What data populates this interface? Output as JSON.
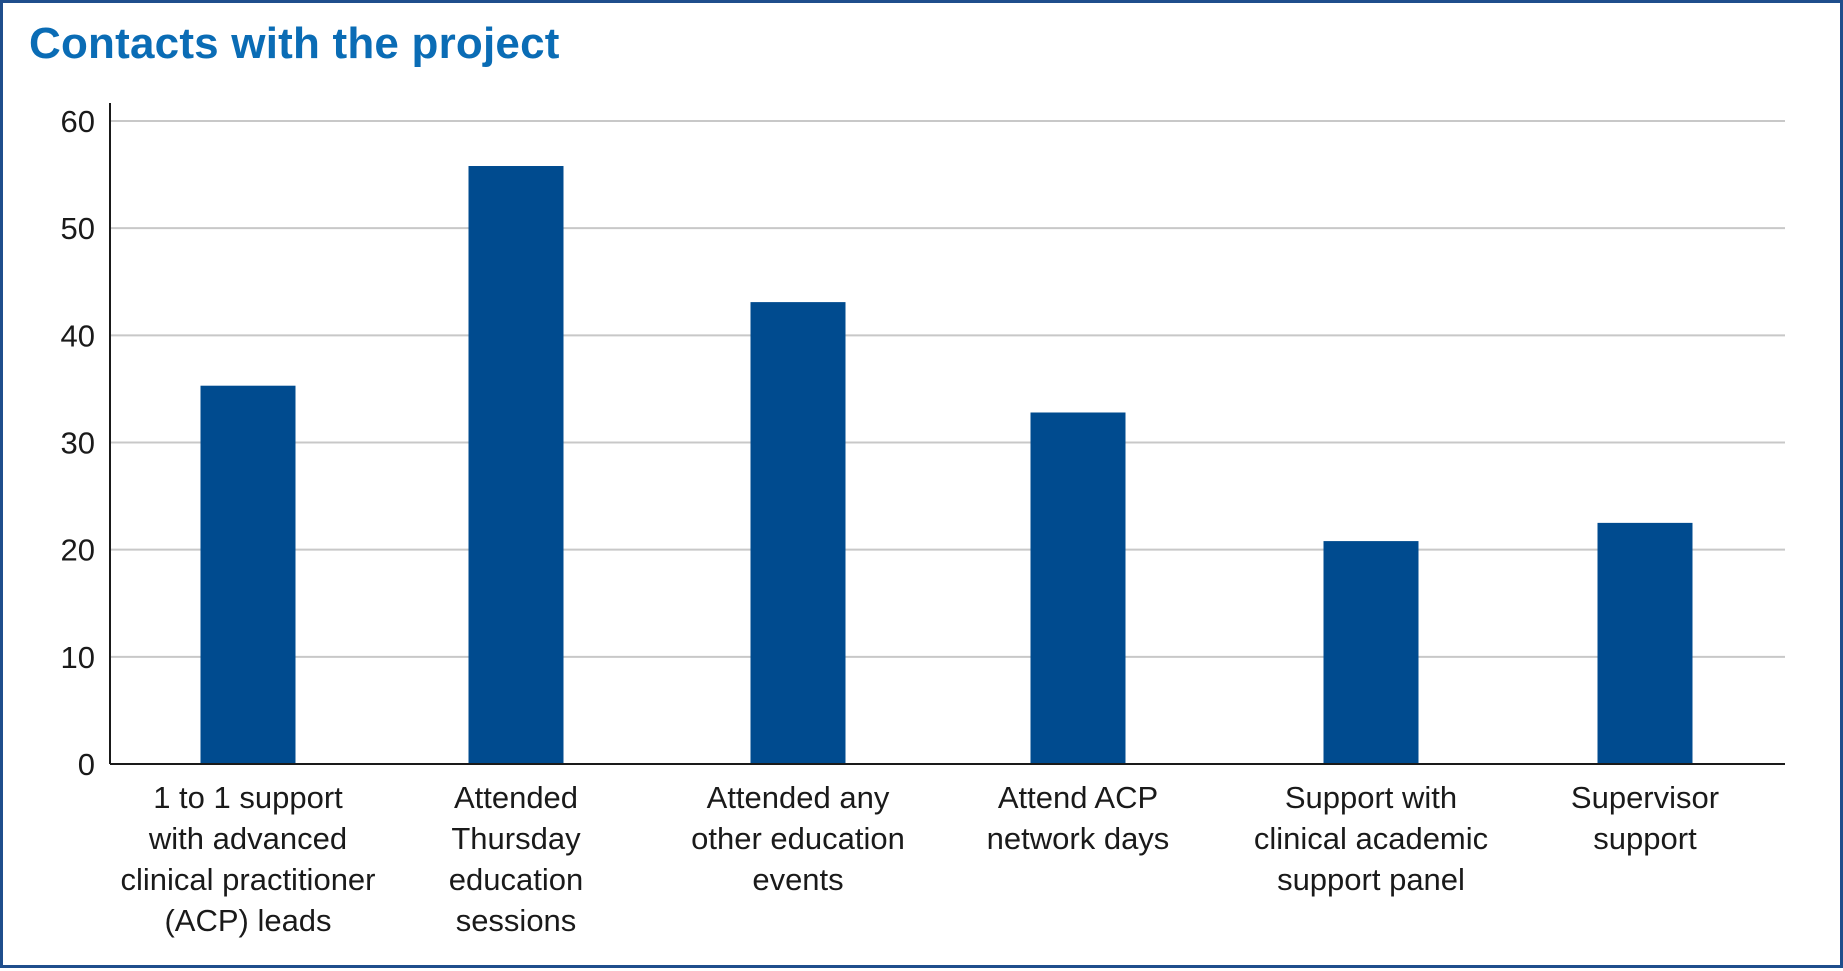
{
  "chart_data": {
    "type": "bar",
    "title": "Contacts with the project",
    "categories": [
      [
        "1 to 1 support",
        "with advanced",
        "clinical practitioner",
        "(ACP) leads"
      ],
      [
        "Attended",
        "Thursday",
        "education",
        "sessions"
      ],
      [
        "Attended any",
        "other education",
        "events"
      ],
      [
        "Attend ACP",
        "network days"
      ],
      [
        "Support with",
        "clinical academic",
        "support panel"
      ],
      [
        "Supervisor",
        "support"
      ]
    ],
    "values": [
      35.3,
      55.8,
      43.1,
      32.8,
      20.8,
      22.5
    ],
    "ylim": [
      0,
      60
    ],
    "yticks": [
      0,
      10,
      20,
      30,
      40,
      50,
      60
    ],
    "grid": true,
    "bar_color": "#004b8f",
    "grid_color": "#c8c8c8",
    "axis_color": "#1a1a1a"
  }
}
